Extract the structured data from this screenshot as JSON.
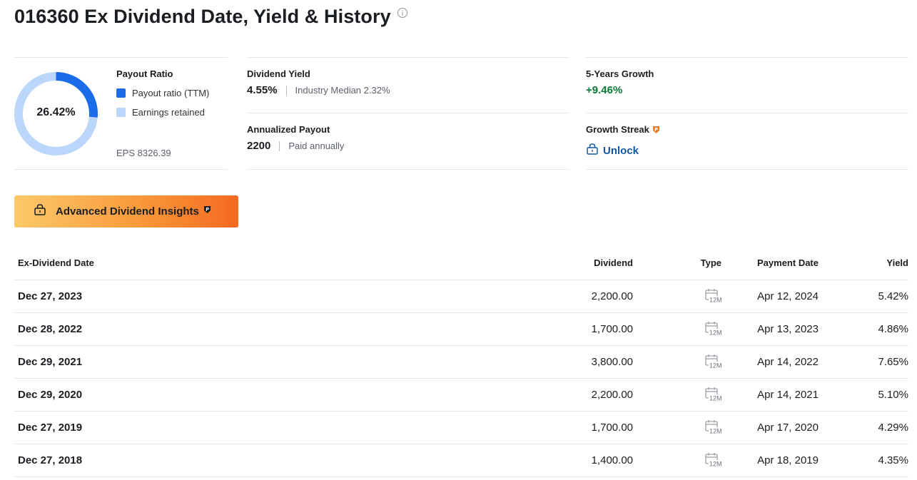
{
  "page": {
    "title": "016360 Ex Dividend Date, Yield & History"
  },
  "payout": {
    "heading": "Payout Ratio",
    "donut_label": "26.42%",
    "ratio_fraction": 0.2642,
    "legend": [
      {
        "label": "Payout ratio (TTM)",
        "color": "#1a6ce8"
      },
      {
        "label": "Earnings retained",
        "color": "#bad6fa"
      }
    ],
    "eps": "EPS 8326.39"
  },
  "dividend_yield": {
    "label": "Dividend Yield",
    "value": "4.55%",
    "sub": "Industry Median 2.32%"
  },
  "annualized_payout": {
    "label": "Annualized Payout",
    "value": "2200",
    "sub": "Paid annually"
  },
  "growth": {
    "label": "5-Years Growth",
    "value": "+9.46%"
  },
  "growth_streak": {
    "label": "Growth Streak",
    "unlock_label": "Unlock"
  },
  "advanced_button": {
    "label": "Advanced Dividend Insights"
  },
  "table": {
    "headers": {
      "ex_date": "Ex-Dividend Date",
      "dividend": "Dividend",
      "type": "Type",
      "payment_date": "Payment Date",
      "yield": "Yield"
    },
    "rows": [
      {
        "ex_date": "Dec 27, 2023",
        "dividend": "2,200.00",
        "type": "12M",
        "payment_date": "Apr 12, 2024",
        "yield": "5.42%"
      },
      {
        "ex_date": "Dec 28, 2022",
        "dividend": "1,700.00",
        "type": "12M",
        "payment_date": "Apr 13, 2023",
        "yield": "4.86%"
      },
      {
        "ex_date": "Dec 29, 2021",
        "dividend": "3,800.00",
        "type": "12M",
        "payment_date": "Apr 14, 2022",
        "yield": "7.65%"
      },
      {
        "ex_date": "Dec 29, 2020",
        "dividend": "2,200.00",
        "type": "12M",
        "payment_date": "Apr 14, 2021",
        "yield": "5.10%"
      },
      {
        "ex_date": "Dec 27, 2019",
        "dividend": "1,700.00",
        "type": "12M",
        "payment_date": "Apr 17, 2020",
        "yield": "4.29%"
      },
      {
        "ex_date": "Dec 27, 2018",
        "dividend": "1,400.00",
        "type": "12M",
        "payment_date": "Apr 18, 2019",
        "yield": "4.35%"
      }
    ]
  },
  "icons": {
    "info": "info-circle-icon",
    "lock": "lock-icon",
    "pro": "pro-crown-badge-icon",
    "type": "calendar-12m-icon"
  }
}
